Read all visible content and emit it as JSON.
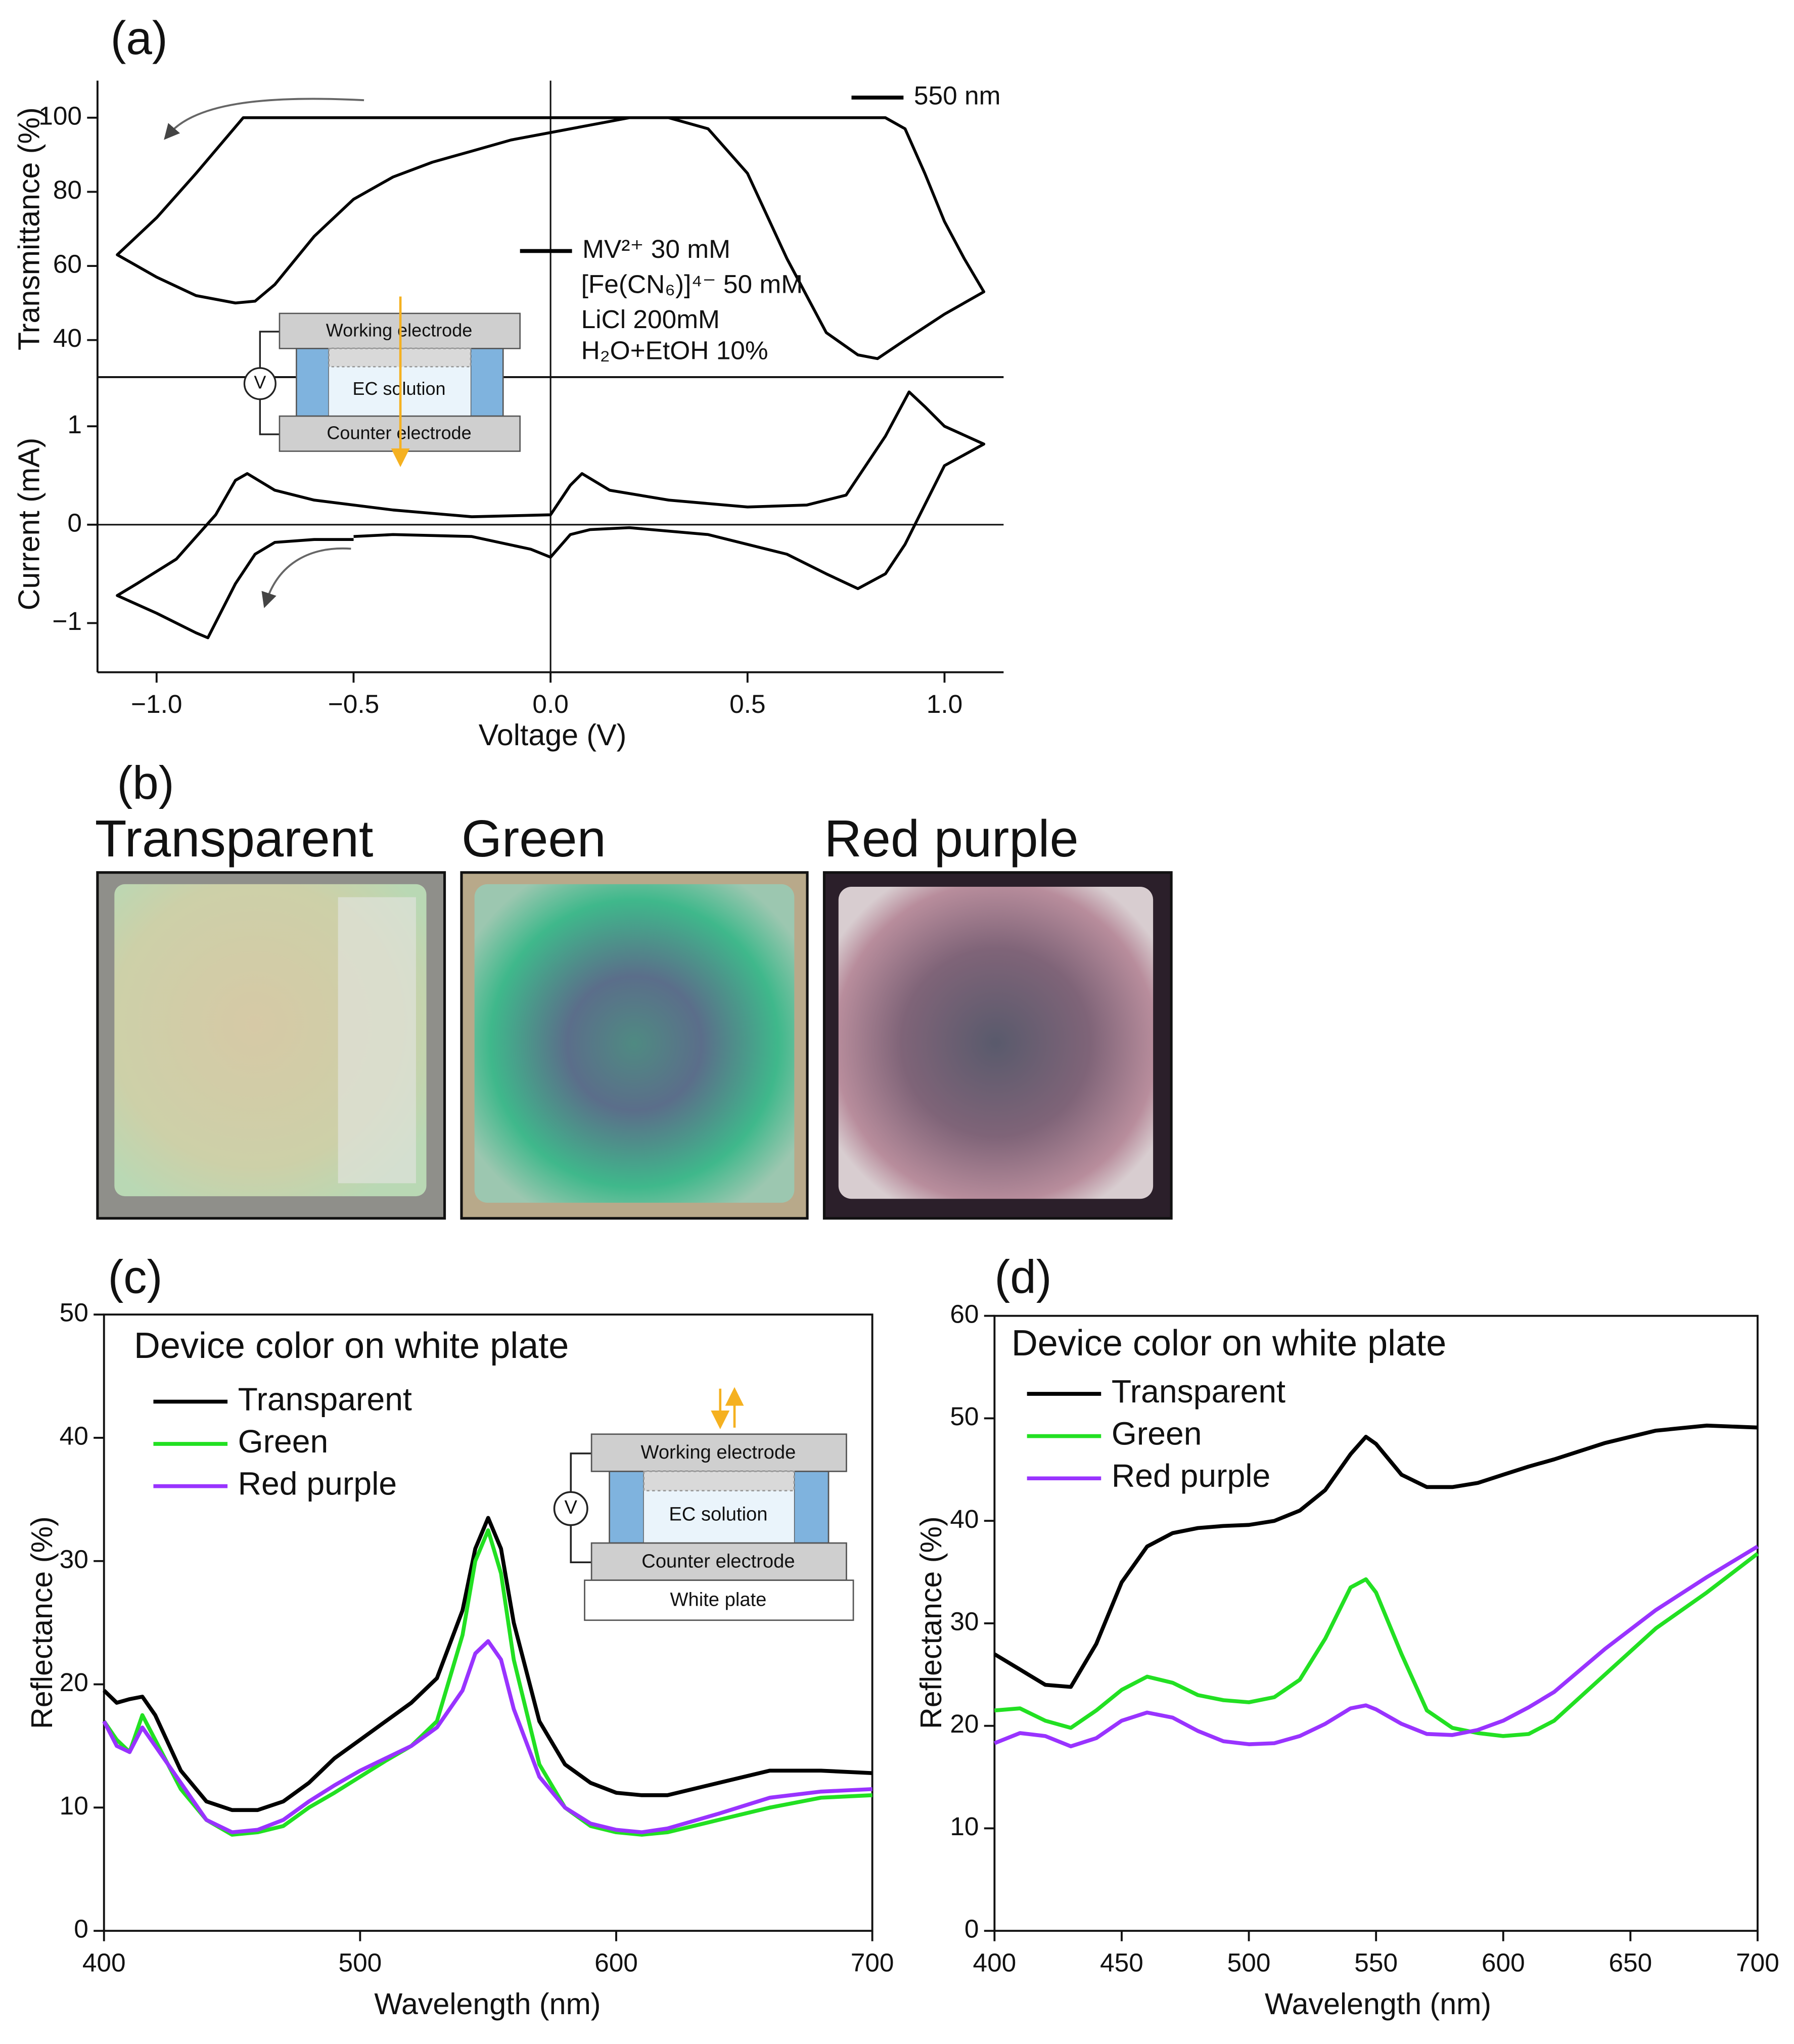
{
  "chart_data": [
    {
      "type": "line",
      "label": "(a)",
      "ylabel": "Transmittance (%)",
      "xlim": [
        -1.15,
        1.15
      ],
      "ylim": [
        30,
        110
      ],
      "yticks": [
        40,
        60,
        80,
        100
      ],
      "inset_labels": [
        "Working electrode",
        "EC solution",
        "Counter electrode",
        "V"
      ],
      "series": [
        {
          "name": "550 nm",
          "color": "#000000",
          "x": [
            -0.5,
            -0.78,
            -0.9,
            -1.0,
            -1.1,
            -1.0,
            -0.9,
            -0.8,
            -0.75,
            -0.7,
            -0.6,
            -0.5,
            -0.4,
            -0.3,
            -0.2,
            -0.1,
            0,
            0.1,
            0.2,
            0.3,
            0.5,
            0.7,
            0.85,
            0.9,
            0.95,
            1.0,
            1.05,
            1.1,
            1.0,
            0.9,
            0.83,
            0.78,
            0.7,
            0.6,
            0.5,
            0.4,
            0.3,
            0.1,
            -0.1,
            -0.3,
            -0.5
          ],
          "values": [
            100,
            100,
            85,
            73,
            63,
            57,
            52,
            50,
            50.5,
            55,
            68,
            78,
            84,
            88,
            91,
            94,
            96,
            98,
            100,
            100,
            100,
            100,
            100,
            97,
            85,
            72,
            62,
            53,
            47,
            40,
            35,
            36,
            42,
            62,
            85,
            97,
            100,
            100,
            100,
            100,
            100
          ]
        }
      ]
    },
    {
      "type": "line",
      "xlabel": "Voltage (V)",
      "ylabel": "Current (mA)",
      "xlim": [
        -1.15,
        1.15
      ],
      "ylim": [
        -1.5,
        1.5
      ],
      "xticks": [
        {
          "value": -1,
          "label": "−1.0"
        },
        {
          "value": -0.5,
          "label": "−0.5"
        },
        {
          "value": 0,
          "label": "0.0"
        },
        {
          "value": 0.5,
          "label": "0.5"
        },
        {
          "value": 1,
          "label": "1.0"
        }
      ],
      "yticks": [
        {
          "value": -1,
          "label": "−1"
        },
        0,
        1
      ],
      "annotations": [
        "[Fe(CN₆)]⁴⁻ 50 mM",
        "LiCl 200mM",
        "H₂O+EtOH 10%"
      ],
      "series": [
        {
          "name": "MV²⁺ 30 mM",
          "color": "#000000",
          "x": [
            -0.5,
            -0.6,
            -0.7,
            -0.75,
            -0.8,
            -0.87,
            -0.9,
            -1.0,
            -1.1,
            -1.05,
            -0.95,
            -0.85,
            -0.8,
            -0.77,
            -0.7,
            -0.6,
            -0.4,
            -0.2,
            0,
            0.05,
            0.08,
            0.15,
            0.3,
            0.5,
            0.65,
            0.75,
            0.85,
            0.91,
            0.95,
            1.0,
            1.1,
            1.0,
            0.9,
            0.85,
            0.78,
            0.7,
            0.6,
            0.4,
            0.2,
            0.1,
            0.05,
            0,
            -0.05,
            -0.2,
            -0.4,
            -0.5
          ],
          "values": [
            -0.15,
            -0.15,
            -0.18,
            -0.3,
            -0.6,
            -1.15,
            -1.1,
            -0.9,
            -0.72,
            -0.6,
            -0.35,
            0.1,
            0.45,
            0.52,
            0.35,
            0.25,
            0.15,
            0.08,
            0.1,
            0.4,
            0.52,
            0.35,
            0.25,
            0.18,
            0.2,
            0.3,
            0.9,
            1.35,
            1.2,
            1.0,
            0.82,
            0.6,
            -0.2,
            -0.5,
            -0.65,
            -0.5,
            -0.3,
            -0.1,
            -0.03,
            -0.05,
            -0.1,
            -0.33,
            -0.25,
            -0.12,
            -0.1,
            -0.12
          ]
        }
      ]
    },
    {
      "type": "line",
      "label": "(c)",
      "title": "Device color on white plate",
      "xlabel": "Wavelength (nm)",
      "ylabel": "Reflectance (%)",
      "xlim": [
        400,
        700
      ],
      "ylim": [
        0,
        50
      ],
      "xticks": [
        400,
        500,
        600,
        700
      ],
      "yticks": [
        0,
        10,
        20,
        30,
        40,
        50
      ],
      "inset_labels": [
        "Working electrode",
        "EC solution",
        "Counter electrode",
        "V",
        "White plate"
      ],
      "x": [
        400,
        405,
        410,
        415,
        420,
        430,
        440,
        450,
        460,
        470,
        480,
        490,
        500,
        510,
        520,
        530,
        540,
        545,
        550,
        555,
        560,
        570,
        580,
        590,
        600,
        610,
        620,
        640,
        660,
        680,
        700
      ],
      "series": [
        {
          "name": "Transparent",
          "color": "#000000",
          "values": [
            19.5,
            18.5,
            18.8,
            19,
            17.5,
            13,
            10.5,
            9.8,
            9.8,
            10.5,
            12,
            14,
            15.5,
            17,
            18.5,
            20.5,
            26,
            31,
            33.5,
            31,
            25,
            17,
            13.5,
            12,
            11.2,
            11,
            11,
            12,
            13,
            13,
            12.8
          ]
        },
        {
          "name": "Green",
          "color": "#22e022",
          "values": [
            17,
            15.5,
            14.5,
            17.5,
            15.5,
            11.5,
            9,
            7.8,
            8,
            8.5,
            10,
            11.2,
            12.5,
            13.8,
            15,
            17,
            24,
            30,
            32.5,
            29,
            22,
            13.5,
            10,
            8.5,
            8,
            7.8,
            8,
            9,
            10,
            10.8,
            11
          ]
        },
        {
          "name": "Red purple",
          "color": "#9933ff",
          "values": [
            17,
            15,
            14.5,
            16.5,
            15,
            12,
            9,
            8,
            8.2,
            9,
            10.5,
            11.8,
            13,
            14,
            15,
            16.5,
            19.5,
            22.5,
            23.5,
            22,
            18,
            12.5,
            10,
            8.7,
            8.2,
            8,
            8.3,
            9.5,
            10.8,
            11.3,
            11.5
          ]
        }
      ]
    },
    {
      "type": "line",
      "label": "(d)",
      "title": "Device color on white plate",
      "xlabel": "Wavelength (nm)",
      "ylabel": "Reflectance (%)",
      "xlim": [
        400,
        700
      ],
      "ylim": [
        0,
        60
      ],
      "xticks": [
        400,
        450,
        500,
        550,
        600,
        650,
        700
      ],
      "yticks": [
        0,
        10,
        20,
        30,
        40,
        50,
        60
      ],
      "x": [
        400,
        410,
        420,
        430,
        440,
        450,
        460,
        470,
        480,
        490,
        500,
        510,
        520,
        530,
        540,
        546,
        550,
        560,
        570,
        580,
        590,
        600,
        610,
        620,
        640,
        660,
        680,
        700
      ],
      "series": [
        {
          "name": "Transparent",
          "color": "#000000",
          "values": [
            27,
            25.5,
            24,
            23.8,
            28,
            34,
            37.5,
            38.8,
            39.3,
            39.5,
            39.6,
            40,
            41,
            43,
            46.5,
            48.2,
            47.5,
            44.5,
            43.3,
            43.3,
            43.7,
            44.5,
            45.3,
            46,
            47.6,
            48.8,
            49.3,
            49.1
          ]
        },
        {
          "name": "Green",
          "color": "#22e022",
          "values": [
            21.5,
            21.7,
            20.5,
            19.8,
            21.5,
            23.5,
            24.8,
            24.2,
            23,
            22.5,
            22.3,
            22.8,
            24.5,
            28.5,
            33.5,
            34.3,
            33,
            27,
            21.5,
            19.8,
            19.3,
            19,
            19.2,
            20.5,
            25,
            29.5,
            33,
            36.8
          ]
        },
        {
          "name": "Red purple",
          "color": "#9933ff",
          "values": [
            18.3,
            19.3,
            19,
            18,
            18.8,
            20.5,
            21.3,
            20.8,
            19.5,
            18.5,
            18.2,
            18.3,
            19,
            20.2,
            21.7,
            22,
            21.6,
            20.2,
            19.2,
            19.1,
            19.6,
            20.5,
            21.8,
            23.3,
            27.5,
            31.3,
            34.5,
            37.5
          ]
        }
      ]
    }
  ],
  "photos": {
    "label": "(b)",
    "titles": [
      "Transparent",
      "Green",
      "Red purple"
    ]
  }
}
